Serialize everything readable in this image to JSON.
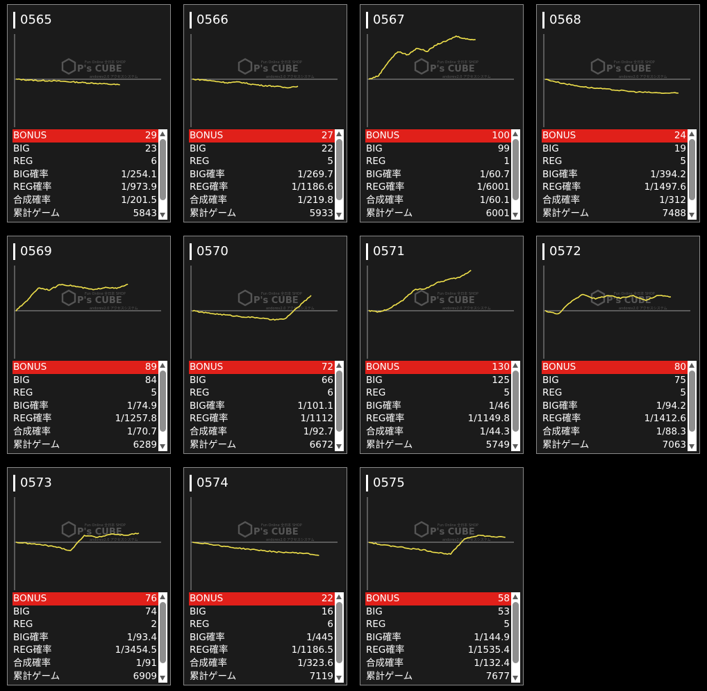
{
  "labels": {
    "bonus": "BONUS",
    "big": "BIG",
    "reg": "REG",
    "big_rate": "BIG確率",
    "reg_rate": "REG確率",
    "combined_rate": "合成確率",
    "total_games": "累計ゲーム"
  },
  "watermark": {
    "brand": "P's CUBE",
    "top_text": "Fun Online 全日本 SHOP",
    "bottom_text": "andorev2.0 アクセスシステム"
  },
  "colors": {
    "graph_line": "#f2e34c",
    "bonus_bar": "#e0201a",
    "card_bg": "#1b1b1b"
  },
  "machines": [
    {
      "id": "0565",
      "bonus": "29",
      "big": "23",
      "reg": "6",
      "big_rate": "1/254.1",
      "reg_rate": "1/973.9",
      "combined_rate": "1/201.5",
      "total_games": "5843",
      "trend": [
        0,
        -1,
        -2,
        -2,
        -3,
        -4,
        -5,
        -6,
        -7,
        -8
      ]
    },
    {
      "id": "0566",
      "bonus": "27",
      "big": "22",
      "reg": "5",
      "big_rate": "1/269.7",
      "reg_rate": "1/1186.6",
      "combined_rate": "1/219.8",
      "total_games": "5933",
      "trend": [
        0,
        -1,
        -3,
        -5,
        -4,
        -7,
        -9,
        -10,
        -12,
        -10
      ]
    },
    {
      "id": "0567",
      "bonus": "100",
      "big": "99",
      "reg": "1",
      "big_rate": "1/60.7",
      "reg_rate": "1/6001",
      "combined_rate": "1/60.1",
      "total_games": "6001",
      "trend": [
        0,
        5,
        25,
        40,
        35,
        45,
        40,
        50,
        55,
        62,
        58,
        57
      ]
    },
    {
      "id": "0568",
      "bonus": "24",
      "big": "19",
      "reg": "5",
      "big_rate": "1/394.2",
      "reg_rate": "1/1497.6",
      "combined_rate": "1/312",
      "total_games": "7488",
      "trend": [
        0,
        -5,
        -9,
        -12,
        -14,
        -16,
        -18,
        -19,
        -20,
        -20
      ]
    },
    {
      "id": "0569",
      "bonus": "89",
      "big": "84",
      "reg": "5",
      "big_rate": "1/74.9",
      "reg_rate": "1/1257.8",
      "combined_rate": "1/70.7",
      "total_games": "6289",
      "trend": [
        0,
        15,
        33,
        30,
        38,
        36,
        33,
        30,
        34,
        32,
        38
      ]
    },
    {
      "id": "0570",
      "bonus": "72",
      "big": "66",
      "reg": "6",
      "big_rate": "1/101.1",
      "reg_rate": "1/1112",
      "combined_rate": "1/92.7",
      "total_games": "6672",
      "trend": [
        0,
        -3,
        -5,
        -7,
        -9,
        -10,
        -13,
        -12,
        5,
        22
      ]
    },
    {
      "id": "0571",
      "bonus": "130",
      "big": "125",
      "reg": "5",
      "big_rate": "1/46",
      "reg_rate": "1/1149.8",
      "combined_rate": "1/44.3",
      "total_games": "5749",
      "trend": [
        0,
        -2,
        5,
        15,
        30,
        32,
        40,
        45,
        48,
        58
      ]
    },
    {
      "id": "0572",
      "bonus": "80",
      "big": "75",
      "reg": "5",
      "big_rate": "1/94.2",
      "reg_rate": "1/1412.6",
      "combined_rate": "1/88.3",
      "total_games": "7063",
      "trend": [
        0,
        -5,
        12,
        24,
        17,
        22,
        18,
        22,
        15,
        22,
        20
      ]
    },
    {
      "id": "0573",
      "bonus": "76",
      "big": "74",
      "reg": "2",
      "big_rate": "1/93.4",
      "reg_rate": "1/3454.5",
      "combined_rate": "1/91",
      "total_games": "6909",
      "trend": [
        0,
        -2,
        -4,
        -7,
        -12,
        10,
        7,
        12,
        10,
        13
      ]
    },
    {
      "id": "0574",
      "bonus": "22",
      "big": "16",
      "reg": "6",
      "big_rate": "1/445",
      "reg_rate": "1/1186.5",
      "combined_rate": "1/323.6",
      "total_games": "7119",
      "trend": [
        0,
        -2,
        -5,
        -8,
        -10,
        -12,
        -14,
        -15,
        -16,
        -19
      ]
    },
    {
      "id": "0575",
      "bonus": "58",
      "big": "53",
      "reg": "5",
      "big_rate": "1/144.9",
      "reg_rate": "1/1535.4",
      "combined_rate": "1/132.4",
      "total_games": "7677",
      "trend": [
        0,
        -4,
        -6,
        -9,
        -11,
        -15,
        -17,
        5,
        10,
        8,
        7
      ]
    }
  ]
}
